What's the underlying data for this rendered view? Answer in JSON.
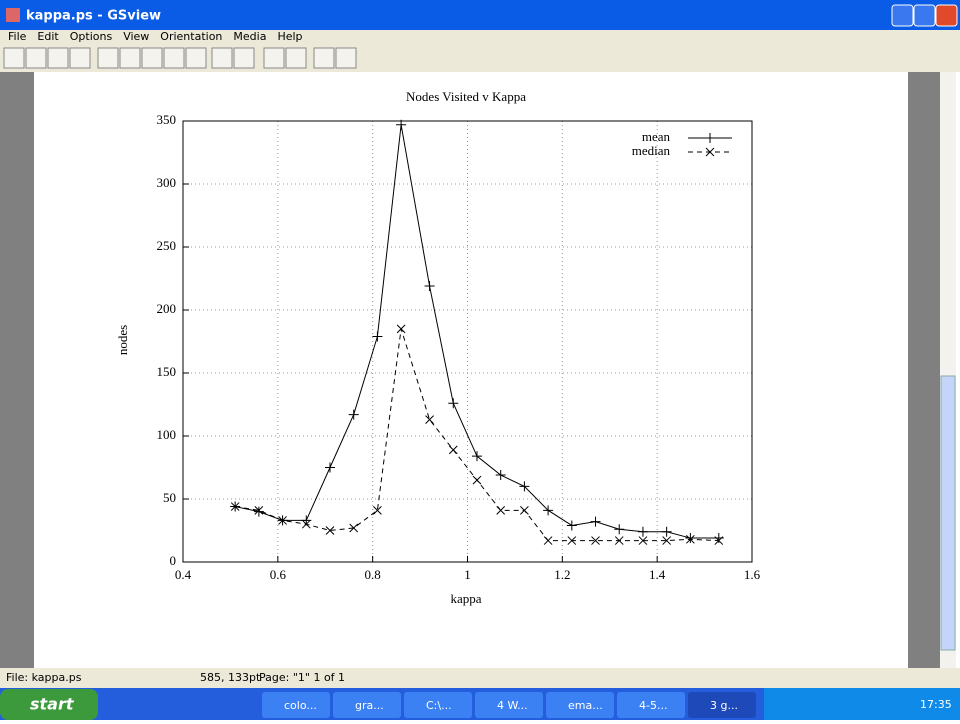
{
  "window": {
    "title": "kappa.ps - GSview",
    "menu": [
      "File",
      "Edit",
      "Options",
      "View",
      "Orientation",
      "Media",
      "Help"
    ],
    "status": [
      "File: kappa.ps",
      "585, 133pt",
      "Page: \"1\"  1 of 1"
    ]
  },
  "taskbar": {
    "start": "start",
    "items": [
      "colo...",
      "gra...",
      "C:\\...",
      "4 W...",
      "ema...",
      "4-5...",
      "3 g..."
    ],
    "clock": "17:35"
  },
  "chart_data": {
    "type": "line",
    "title": "Nodes Visited v Kappa",
    "x_label": "kappa",
    "y_label": "nodes",
    "x": [
      0.51,
      0.56,
      0.61,
      0.66,
      0.71,
      0.76,
      0.81,
      0.86,
      0.92,
      0.97,
      1.02,
      1.07,
      1.12,
      1.17,
      1.22,
      1.27,
      1.32,
      1.37,
      1.42,
      1.47,
      1.53
    ],
    "series": [
      {
        "name": "mean",
        "color": "#000000",
        "linestyle": "solid",
        "marker": "+",
        "values": [
          44,
          40,
          33,
          33,
          75,
          117,
          179,
          347,
          219,
          126,
          84,
          69,
          60,
          41,
          29,
          32,
          26,
          24,
          24,
          19,
          19
        ]
      },
      {
        "name": "median",
        "color": "#000000",
        "linestyle": "dashed",
        "marker": "x",
        "values": [
          44,
          41,
          33,
          30,
          25,
          27,
          41,
          185,
          113,
          89,
          65,
          41,
          41,
          17,
          17,
          17,
          17,
          17,
          17,
          18,
          17
        ]
      }
    ],
    "xlim": [
      0.4,
      1.6
    ],
    "xticks": [
      0.4,
      0.6,
      0.8,
      1,
      1.2,
      1.4,
      1.6
    ],
    "ylim": [
      0,
      350
    ],
    "yticks": [
      0,
      50,
      100,
      150,
      200,
      250,
      300,
      350
    ],
    "grid": true,
    "legend": "top-right"
  }
}
